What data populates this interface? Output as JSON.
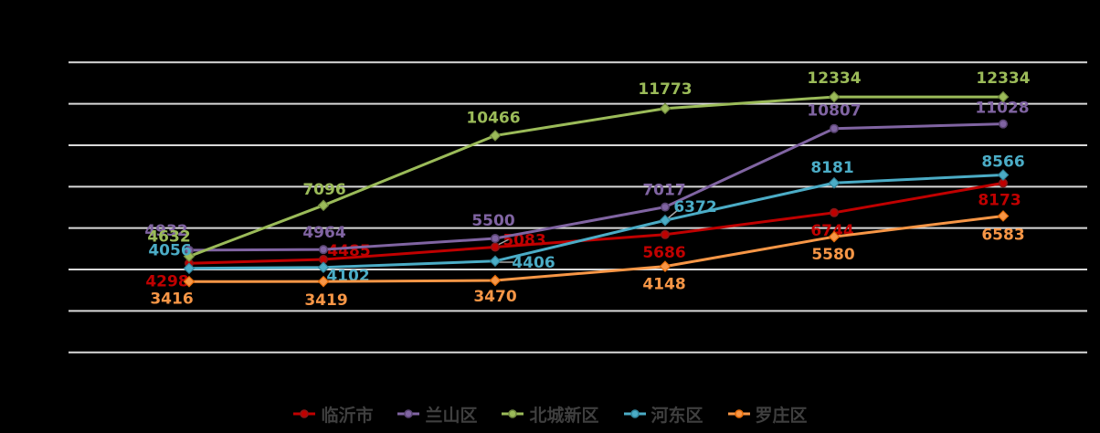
{
  "chart_data": {
    "type": "line",
    "title": "",
    "series": [
      {
        "name": "临沂市",
        "color": "#c00000",
        "edge": "#8c1616",
        "marker": "circle",
        "values": [
          4298,
          4485,
          5083,
          5686,
          6744,
          8173
        ]
      },
      {
        "name": "兰山区",
        "color": "#8064a2",
        "edge": "#5a4573",
        "marker": "circle",
        "values": [
          4932,
          4964,
          5500,
          7017,
          10807,
          11028
        ]
      },
      {
        "name": "北城新区",
        "color": "#9bbb59",
        "edge": "#71893f",
        "marker": "diamond",
        "values": [
          4632,
          7096,
          10466,
          11773,
          12334,
          12334
        ]
      },
      {
        "name": "河东区",
        "color": "#4bacc6",
        "edge": "#31859b",
        "marker": "diamond",
        "values": [
          4056,
          4102,
          4406,
          6372,
          8181,
          8566
        ]
      },
      {
        "name": "罗庄区",
        "color": "#f79646",
        "edge": "#e46c0a",
        "marker": "diamond",
        "values": [
          3416,
          3419,
          3470,
          4148,
          5580,
          6583
        ]
      }
    ],
    "ylim": [
      0,
      14000
    ],
    "y_gridline_step": 2000,
    "grid": true,
    "x_axis_labels_visible": false,
    "y_axis_labels_visible": false,
    "data_labels": true,
    "legend_position": "bottom",
    "background_color": "#000000",
    "gridline_color": "#d9d9d9",
    "legend_text_color": "#3f3f3f",
    "leader_line_color": "#a6a6a6"
  }
}
